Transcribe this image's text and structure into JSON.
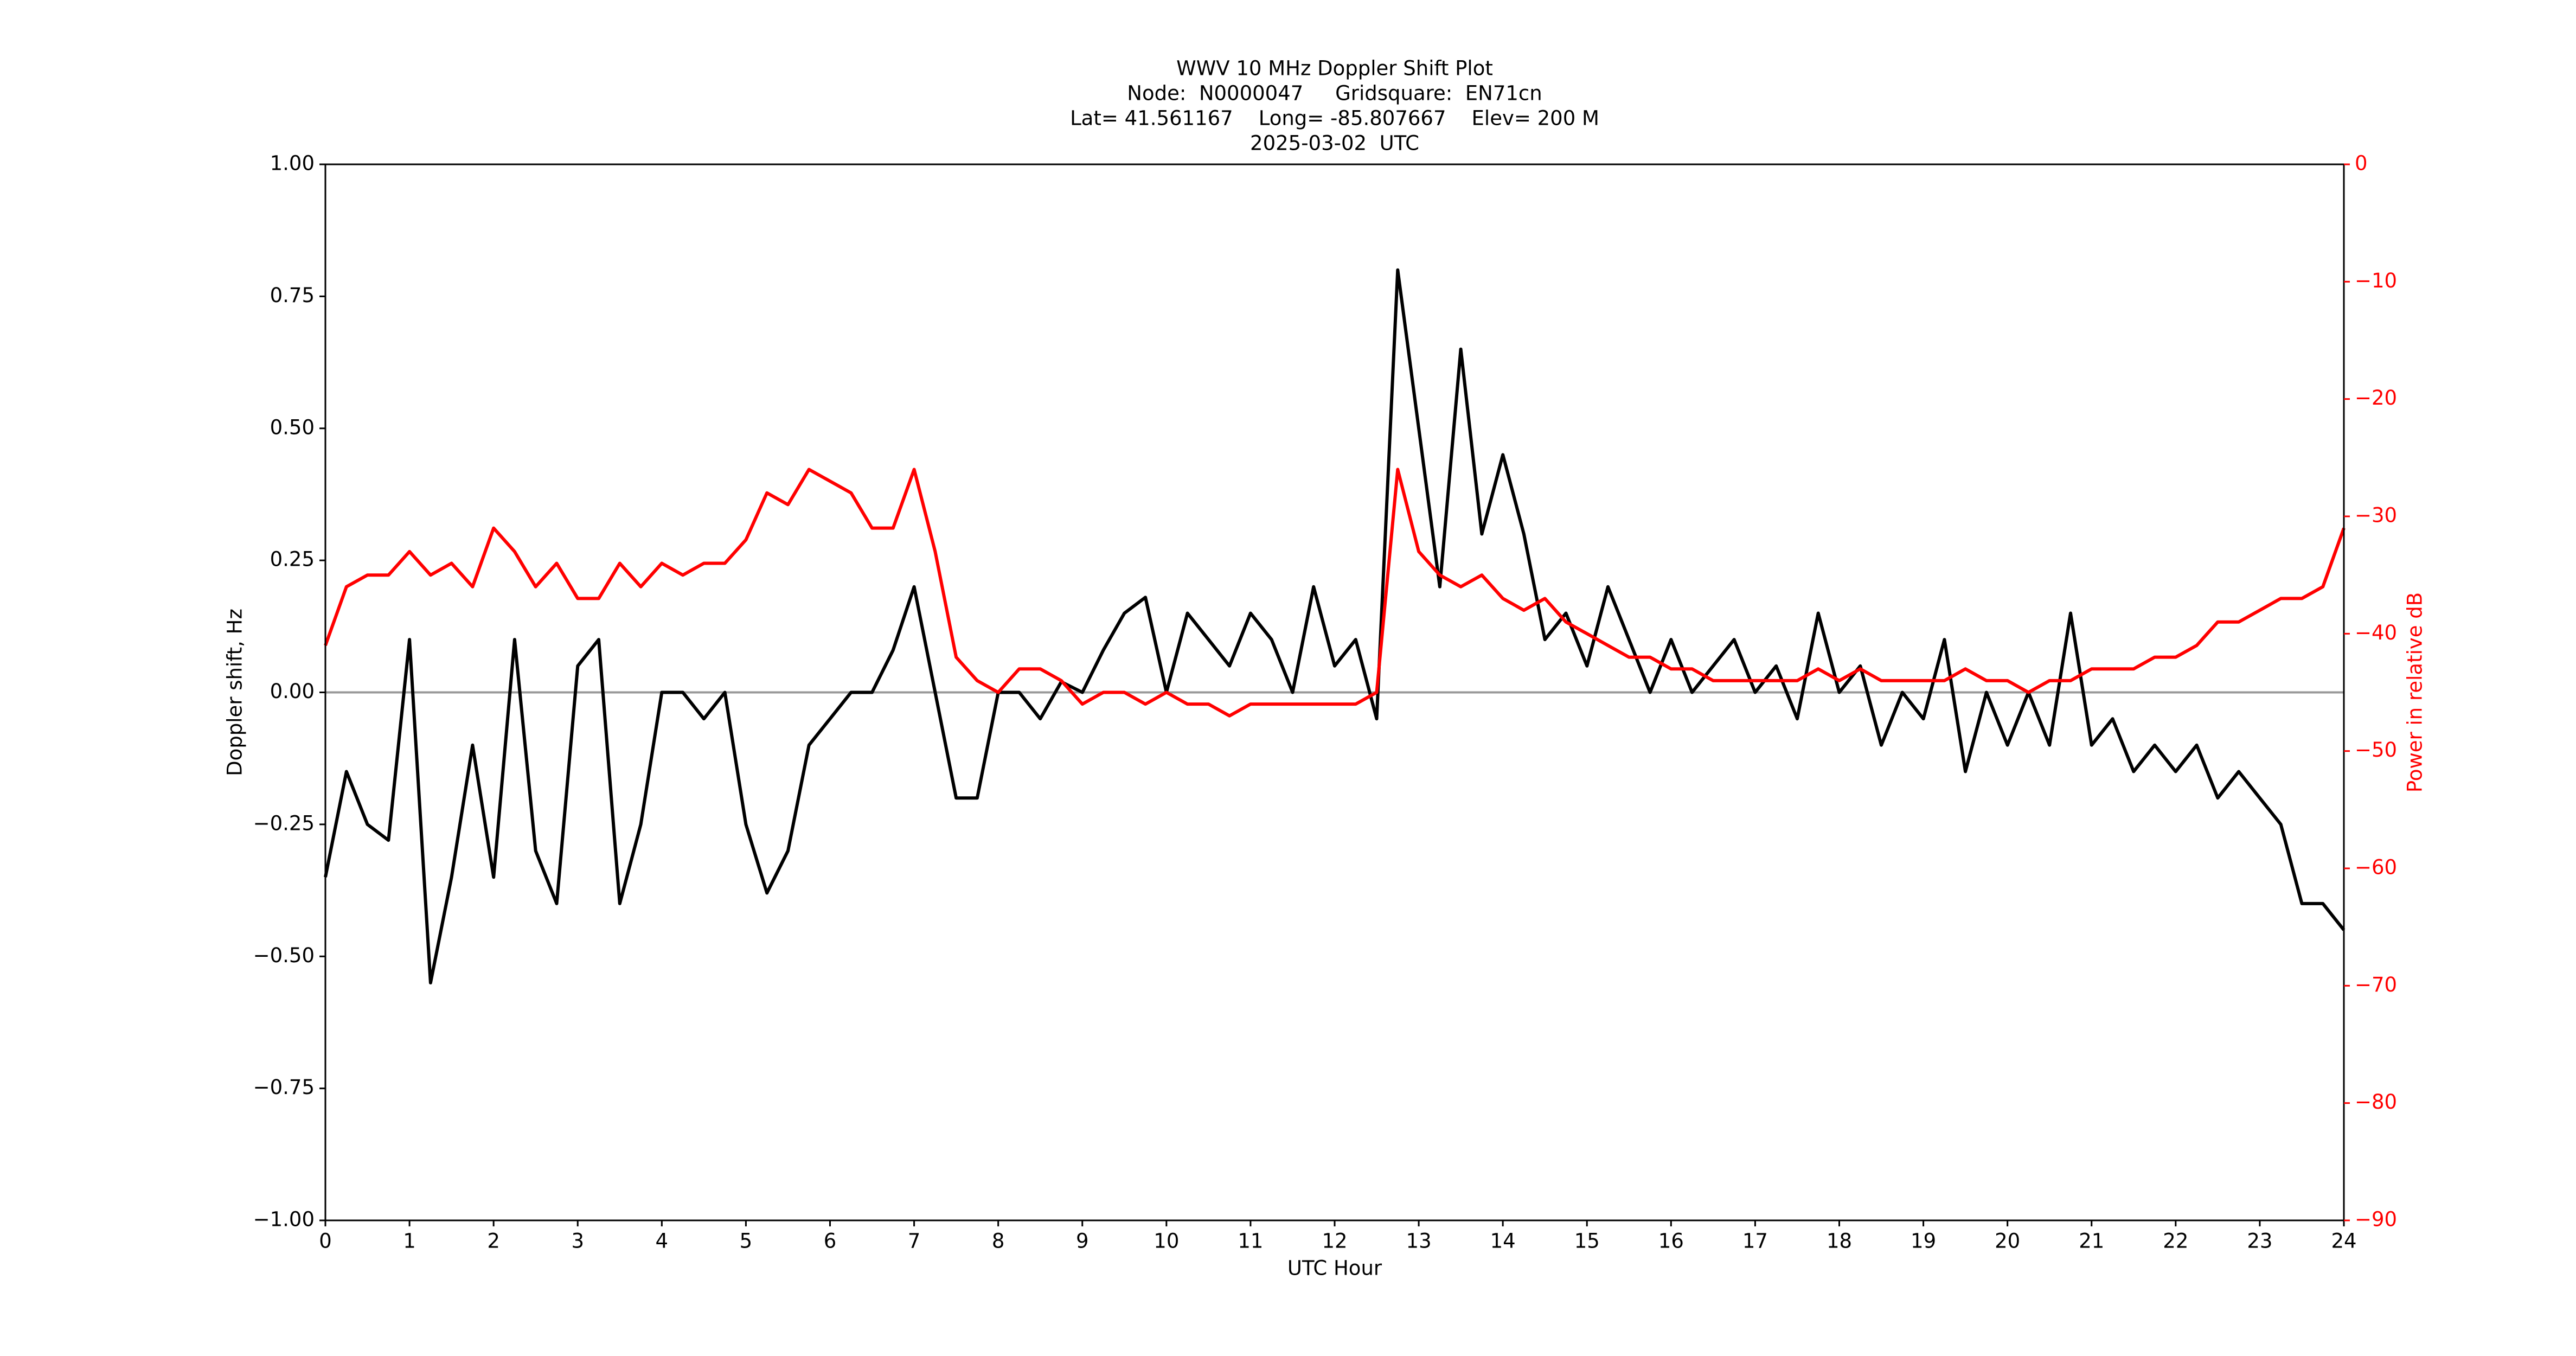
{
  "chart_data": {
    "type": "line",
    "title": [
      "WWV 10 MHz Doppler Shift Plot",
      "Node:  N0000047     Gridsquare:  EN71cn",
      "Lat= 41.561167    Long= -85.807667    Elev= 200 M",
      "2025-03-02  UTC"
    ],
    "x_label": "UTC Hour",
    "y_label": "Doppler shift, Hz",
    "y2_label": "Power in relative dB",
    "x": [
      0,
      0.25,
      0.5,
      0.75,
      1,
      1.25,
      1.5,
      1.75,
      2,
      2.25,
      2.5,
      2.75,
      3,
      3.25,
      3.5,
      3.75,
      4,
      4.25,
      4.5,
      4.75,
      5,
      5.25,
      5.5,
      5.75,
      6,
      6.25,
      6.5,
      6.75,
      7,
      7.25,
      7.5,
      7.75,
      8,
      8.25,
      8.5,
      8.75,
      9,
      9.25,
      9.5,
      9.75,
      10,
      10.25,
      10.5,
      10.75,
      11,
      11.25,
      11.5,
      11.75,
      12,
      12.25,
      12.5,
      12.75,
      13,
      13.25,
      13.5,
      13.75,
      14,
      14.25,
      14.5,
      14.75,
      15,
      15.25,
      15.5,
      15.75,
      16,
      16.25,
      16.5,
      16.75,
      17,
      17.25,
      17.5,
      17.75,
      18,
      18.25,
      18.5,
      18.75,
      19,
      19.25,
      19.5,
      19.75,
      20,
      20.25,
      20.5,
      20.75,
      21,
      21.25,
      21.5,
      21.75,
      22,
      22.25,
      22.5,
      22.75,
      23,
      23.25,
      23.5,
      23.75,
      24
    ],
    "series": [
      {
        "name": "Doppler shift",
        "color": "#000000",
        "values": [
          -0.35,
          -0.15,
          -0.25,
          -0.28,
          0.1,
          -0.55,
          -0.35,
          -0.1,
          -0.35,
          0.1,
          -0.3,
          -0.4,
          0.05,
          0.1,
          -0.4,
          -0.25,
          0,
          0,
          -0.05,
          0,
          -0.25,
          -0.38,
          -0.3,
          -0.1,
          -0.05,
          0,
          0,
          0.08,
          0.2,
          0,
          -0.2,
          -0.2,
          0,
          0,
          -0.05,
          0.02,
          0,
          0.08,
          0.15,
          0.18,
          0,
          0.15,
          0.1,
          0.05,
          0.15,
          0.1,
          0,
          0.2,
          0.05,
          0.1,
          -0.05,
          0.8,
          0.5,
          0.2,
          0.65,
          0.3,
          0.45,
          0.3,
          0.1,
          0.15,
          0.05,
          0.2,
          0.1,
          0,
          0.1,
          0,
          0.05,
          0.1,
          0,
          0.05,
          -0.05,
          0.15,
          0,
          0.05,
          -0.1,
          0,
          -0.05,
          0.1,
          -0.15,
          0,
          -0.1,
          0,
          -0.1,
          0.15,
          -0.1,
          -0.05,
          -0.15,
          -0.1,
          -0.15,
          -0.1,
          -0.2,
          -0.15,
          -0.2,
          -0.25,
          -0.4,
          -0.4,
          -0.45
        ]
      },
      {
        "name": "Power",
        "color": "#ff0000",
        "axis": "y2",
        "values": [
          -41,
          -36,
          -35,
          -35,
          -33,
          -35,
          -34,
          -36,
          -31,
          -33,
          -36,
          -34,
          -37,
          -37,
          -34,
          -36,
          -34,
          -35,
          -34,
          -34,
          -32,
          -28,
          -29,
          -26,
          -27,
          -28,
          -31,
          -31,
          -26,
          -33,
          -42,
          -44,
          -45,
          -43,
          -43,
          -44,
          -46,
          -45,
          -45,
          -46,
          -45,
          -46,
          -46,
          -47,
          -46,
          -46,
          -46,
          -46,
          -46,
          -46,
          -45,
          -26,
          -33,
          -35,
          -36,
          -35,
          -37,
          -38,
          -37,
          -39,
          -40,
          -41,
          -42,
          -42,
          -43,
          -43,
          -44,
          -44,
          -44,
          -44,
          -44,
          -43,
          -44,
          -43,
          -44,
          -44,
          -44,
          -44,
          -43,
          -44,
          -44,
          -45,
          -44,
          -44,
          -43,
          -43,
          -43,
          -42,
          -42,
          -41,
          -39,
          -39,
          -38,
          -37,
          -37,
          -36,
          -31
        ]
      }
    ],
    "xlim": [
      0,
      24
    ],
    "xticks": [
      0,
      1,
      2,
      3,
      4,
      5,
      6,
      7,
      8,
      9,
      10,
      11,
      12,
      13,
      14,
      15,
      16,
      17,
      18,
      19,
      20,
      21,
      22,
      23,
      24
    ],
    "ylim": [
      -1,
      1
    ],
    "yticks": [
      {
        "value": -1,
        "label": "−1.00"
      },
      {
        "value": -0.75,
        "label": "−0.75"
      },
      {
        "value": -0.5,
        "label": "−0.50"
      },
      {
        "value": -0.25,
        "label": "−0.25"
      },
      {
        "value": 0,
        "label": "0.00"
      },
      {
        "value": 0.25,
        "label": "0.25"
      },
      {
        "value": 0.5,
        "label": "0.50"
      },
      {
        "value": 0.75,
        "label": "0.75"
      },
      {
        "value": 1,
        "label": "1.00"
      }
    ],
    "y2lim": [
      -90,
      0
    ],
    "y2ticks": [
      {
        "value": -90,
        "label": "−90"
      },
      {
        "value": -80,
        "label": "−80"
      },
      {
        "value": -70,
        "label": "−70"
      },
      {
        "value": -60,
        "label": "−60"
      },
      {
        "value": -50,
        "label": "−50"
      },
      {
        "value": -40,
        "label": "−40"
      },
      {
        "value": -30,
        "label": "−30"
      },
      {
        "value": -20,
        "label": "−20"
      },
      {
        "value": -10,
        "label": "−10"
      },
      0
    ],
    "y2_color": "#ff0000",
    "grid": false
  }
}
